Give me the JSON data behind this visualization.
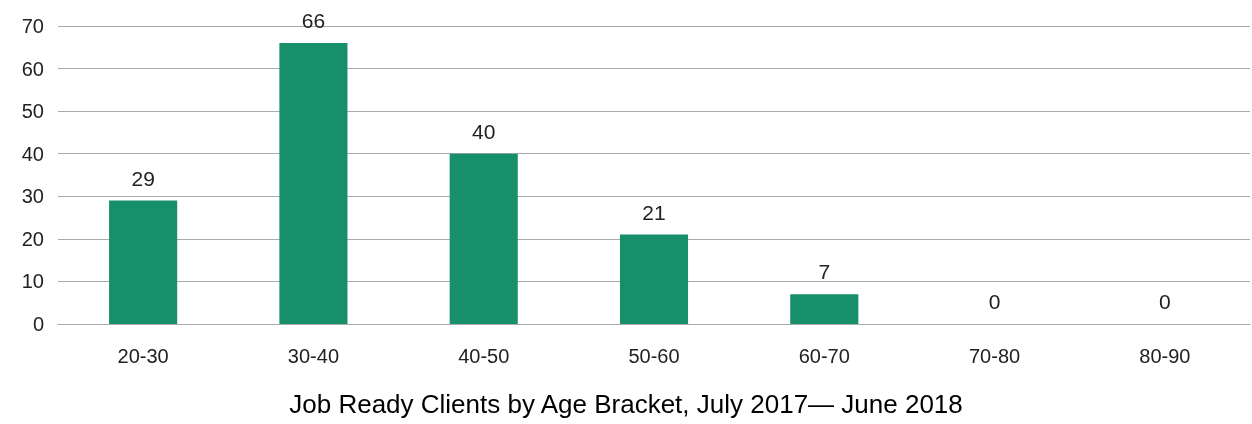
{
  "chart_data": {
    "type": "bar",
    "title": "Job Ready Clients by Age Bracket, July 2017— June 2018",
    "categories": [
      "20-30",
      "30-40",
      "40-50",
      "50-60",
      "60-70",
      "70-80",
      "80-90"
    ],
    "values": [
      29,
      66,
      40,
      21,
      7,
      0,
      0
    ],
    "color": "#178f6a",
    "ylim": [
      0,
      70
    ],
    "yticks": [
      0,
      10,
      20,
      30,
      40,
      50,
      60,
      70
    ],
    "grid": "y",
    "data_labels": true
  }
}
